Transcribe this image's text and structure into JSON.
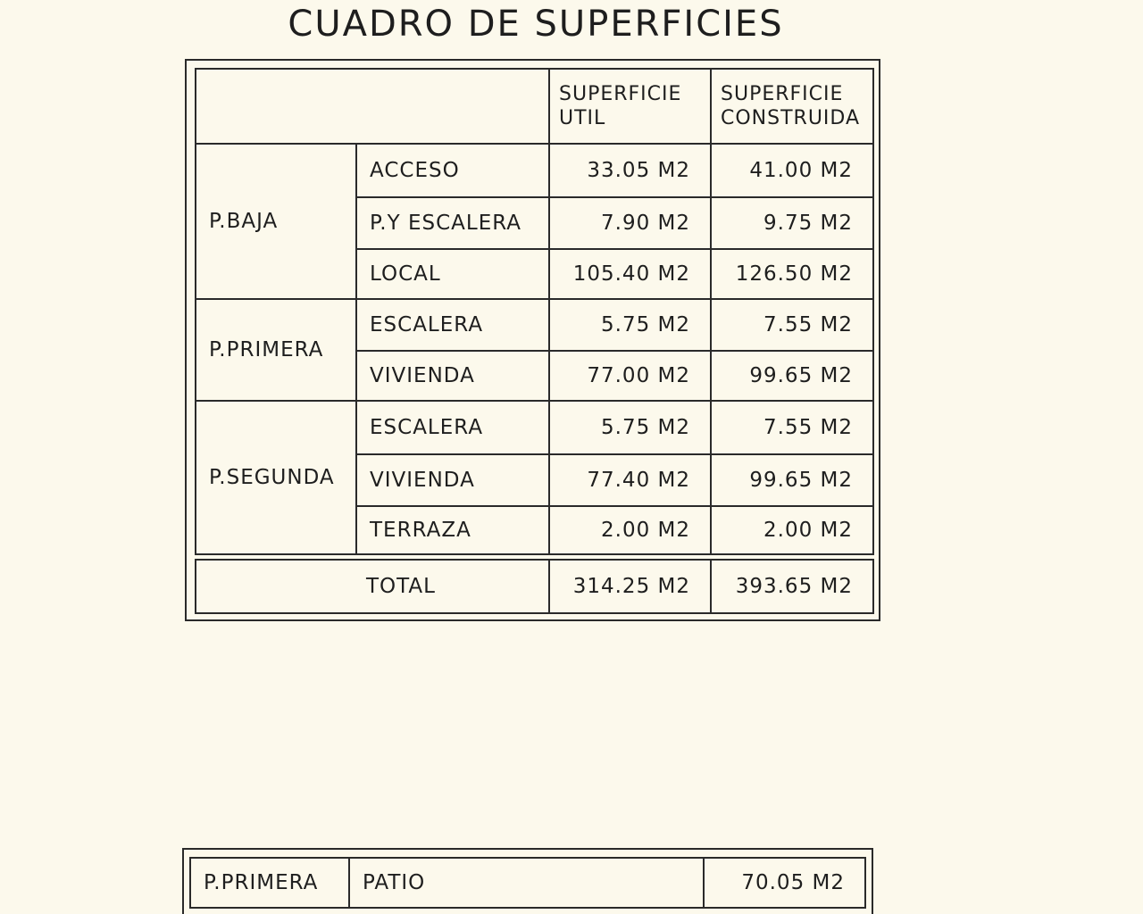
{
  "title": "CUADRO DE SUPERFICIES",
  "table": {
    "header": {
      "util": [
        "SUPERFICIE",
        "UTIL"
      ],
      "construida": [
        "SUPERFICIE",
        "CONSTRUIDA"
      ]
    },
    "groups": [
      {
        "floor": "P.BAJA",
        "rows": [
          [
            "ACCESO",
            "33.05 M2",
            "41.00 M2"
          ],
          [
            "P.Y ESCALERA",
            "7.90 M2",
            "9.75 M2"
          ],
          [
            "LOCAL",
            "105.40 M2",
            "126.50 M2"
          ]
        ]
      },
      {
        "floor": "P.PRIMERA",
        "rows": [
          [
            "ESCALERA",
            "5.75 M2",
            "7.55 M2"
          ],
          [
            "VIVIENDA",
            "77.00 M2",
            "99.65 M2"
          ]
        ]
      },
      {
        "floor": "P.SEGUNDA",
        "rows": [
          [
            "ESCALERA",
            "5.75 M2",
            "7.55 M2"
          ],
          [
            "VIVIENDA",
            "77.40 M2",
            "99.65 M2"
          ],
          [
            "TERRAZA",
            "2.00 M2",
            "2.00 M2"
          ]
        ]
      }
    ],
    "total": {
      "label": "TOTAL",
      "util": "314.25 M2",
      "construida": "393.65 M2"
    }
  },
  "patio": {
    "floor": "P.PRIMERA",
    "label": "PATIO",
    "value": "70.05 M2"
  }
}
